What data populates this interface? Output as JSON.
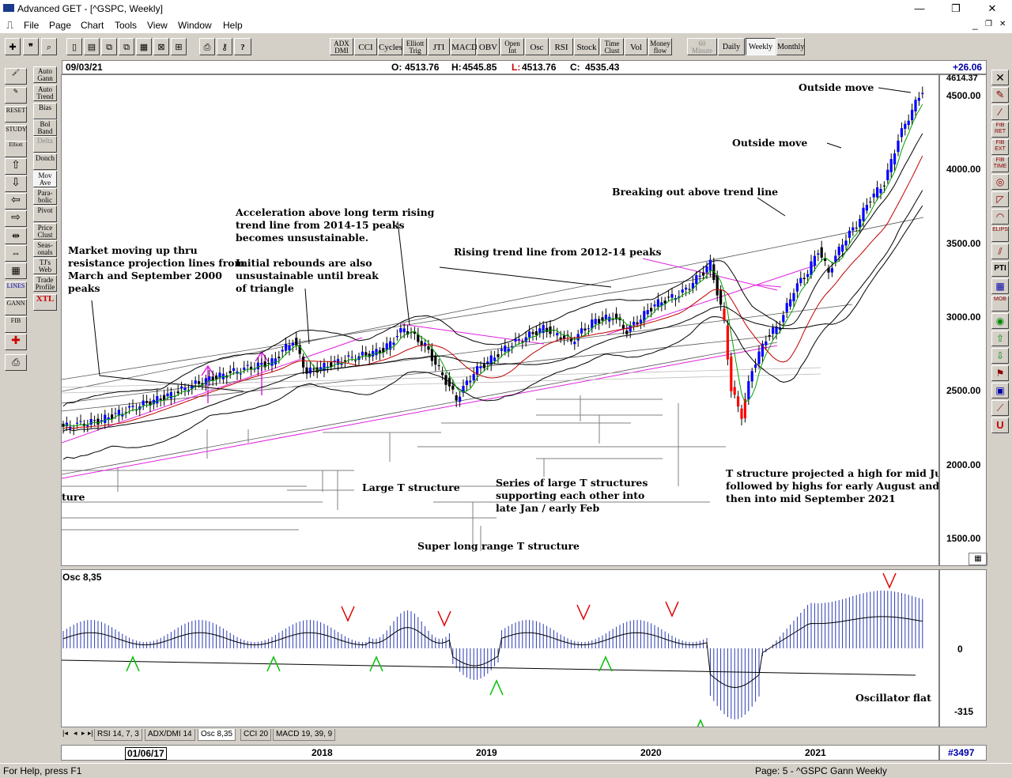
{
  "window": {
    "title": "Advanced GET - [^GSPC, Weekly]",
    "minimize": "—",
    "restore": "❐",
    "close": "✕",
    "inner_min": "_",
    "inner_restore": "❐",
    "inner_close": "✕"
  },
  "menu": [
    "File",
    "Page",
    "Chart",
    "Tools",
    "View",
    "Window",
    "Help"
  ],
  "toolbar": {
    "indicators": [
      "ADX DMI",
      "CCI",
      "Cycles",
      "Elliott Trig",
      "JTI",
      "MACD",
      "OBV",
      "Open Int",
      "Osc",
      "RSI",
      "Stock",
      "Time Clust",
      "Vol",
      "Money flow"
    ],
    "periods": [
      "60 Minute",
      "Daily",
      "Weekly",
      "Monthly"
    ],
    "selected_period": "Weekly"
  },
  "left_tools": [
    "Auto Gann",
    "Auto Trend",
    "Bias",
    "Bol Band",
    "Delta",
    "Donch",
    "Mov Ave",
    "Para-bolic",
    "Pivot",
    "Price Clust",
    "Seas-onals",
    "TJ's Web",
    "Trade Profile",
    "XTL"
  ],
  "left_icons": [
    "RESET",
    "STUDY",
    "Elliott",
    "",
    "",
    "",
    "",
    "",
    "",
    "",
    "LINES",
    "GANN",
    "FIB",
    "",
    ""
  ],
  "right_tools": [
    "FIB RET",
    "FIB EXT",
    "FIB TIME",
    "",
    "",
    "ELIPS",
    "",
    "PTI",
    "",
    "MOB",
    "",
    "",
    "",
    "",
    ""
  ],
  "chart_info": {
    "date": "09/03/21",
    "open_label": "O:",
    "open": "4513.76",
    "high_label": "H:",
    "high": "4545.85",
    "low_label": "L:",
    "low": "4513.76",
    "close_label": "C:",
    "close": "4535.43",
    "change": "+26.06"
  },
  "price_scale": {
    "top_value": "4614.37",
    "ticks": [
      "4500.00",
      "4000.00",
      "3500.00",
      "3000.00",
      "2500.00",
      "2000.00",
      "1500.00"
    ]
  },
  "annotations": {
    "outside_move_1": "Outside move",
    "outside_move_2": "Outside move",
    "breaking_out": "Breaking out above trend line",
    "acceleration": [
      "Acceleration above long term rising",
      "trend line from 2014-15 peaks",
      "becomes unsustainable."
    ],
    "initial_rebounds": [
      "Initial rebounds are also",
      "unsustainable until break",
      "of triangle"
    ],
    "rising_trend": "Rising trend line from 2012-14 peaks",
    "market_moving": [
      "Market moving up thru",
      "resistance projection lines from",
      "March and September 2000",
      "peaks"
    ],
    "ture": "ture",
    "large_t": "Large T structure",
    "series_t": [
      "Series of large T structures",
      "supporting each other into",
      "late Jan / early Feb"
    ],
    "super_long": "Super long range T structure",
    "t_projection": [
      "T structure projected a high for mid July",
      "followed by highs for early August and",
      "then into mid September 2021"
    ],
    "osc_flat": "Oscillator flat"
  },
  "oscillator": {
    "label": "Osc 8,35",
    "zero_tick": "0",
    "low_tick": "-315"
  },
  "tabs": [
    "RSI 14, 7, 3",
    "ADX/DMI 14",
    "Osc 8,35",
    "CCI 20",
    "MACD 19, 39, 9"
  ],
  "active_tab": "Osc 8,35",
  "time_axis": {
    "start": "01/06/17",
    "years": [
      "2018",
      "2019",
      "2020",
      "2021"
    ],
    "bar_count": "#3497"
  },
  "status": {
    "help": "For Help, press F1",
    "page": "Page: 5 - ^GSPC Gann Weekly"
  },
  "colors": {
    "up_bar": "#0000ff",
    "down_bar": "#000000",
    "crash_bar": "#ff0000",
    "ma_fast": "#00a000",
    "ma_slow": "#c00000",
    "trend_magenta": "#e020e0",
    "sell_arrow": "#e00000",
    "buy_arrow": "#00c000"
  }
}
